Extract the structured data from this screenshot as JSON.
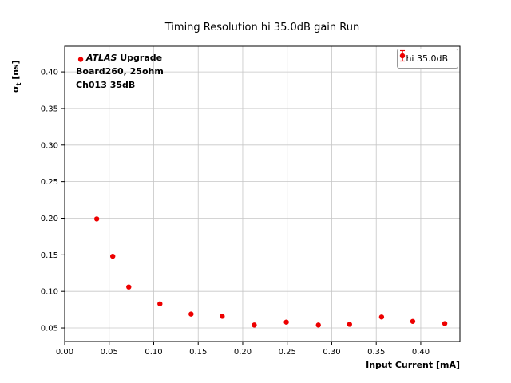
{
  "chart_data": {
    "type": "scatter",
    "title": "Timing Resolution hi 35.0dB gain Run",
    "xlabel": "Input Current [mA]",
    "ylabel": "sigma_t [ns]",
    "ylabel_parts": {
      "sigma": "σ",
      "sub": "t",
      "units": " [ns]"
    },
    "series": [
      {
        "name": "hi 35.0dB",
        "marker": "circle-errorbar",
        "color": "#ed0000",
        "x": [
          0.018,
          0.036,
          0.054,
          0.072,
          0.107,
          0.142,
          0.177,
          0.213,
          0.249,
          0.285,
          0.32,
          0.356,
          0.391,
          0.427
        ],
        "y": [
          0.417,
          0.199,
          0.148,
          0.106,
          0.083,
          0.069,
          0.066,
          0.054,
          0.058,
          0.054,
          0.055,
          0.065,
          0.059,
          0.056
        ],
        "yerr": 0.003
      }
    ],
    "xlim": [
      0.0,
      0.444
    ],
    "ylim": [
      0.0315,
      0.435
    ],
    "xticks": [
      0.0,
      0.05,
      0.1,
      0.15,
      0.2,
      0.25,
      0.3,
      0.35,
      0.4
    ],
    "yticks": [
      0.05,
      0.1,
      0.15,
      0.2,
      0.25,
      0.3,
      0.35,
      0.4
    ],
    "grid": true,
    "grid_color": "#c6c6c6",
    "spine_color": "#000000",
    "legend_position": "upper right",
    "annotation": {
      "line1_italic": "ATLAS",
      "line1_bold": " Upgrade",
      "line2": "Board260, 25ohm",
      "line3": "Ch013 35dB"
    }
  }
}
